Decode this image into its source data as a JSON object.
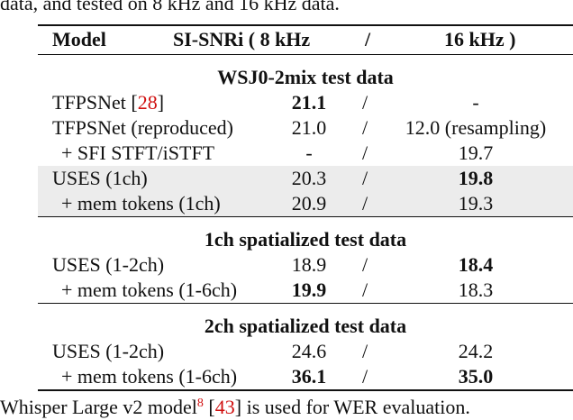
{
  "intro_text": "data, and tested on 8 kHz and 16 kHz data.",
  "table": {
    "columns": [
      "Model",
      "SI-SNRi ( 8 kHz",
      "/",
      "16 kHz )"
    ],
    "sections": [
      {
        "title": "WSJ0-2mix test data",
        "rows": [
          {
            "model": "TFPSNet",
            "ref": {
              "open": "[",
              "label": "28",
              "close": "]"
            },
            "snr8": "21.1",
            "sep": "/",
            "snr16": "-",
            "bold": "snr8"
          },
          {
            "model": "TFPSNet (reproduced)",
            "snr8": "21.0",
            "sep": "/",
            "snr16": "12.0 (resampling)"
          },
          {
            "model": "+ SFI STFT/iSTFT",
            "indent": true,
            "snr8": "-",
            "sep": "/",
            "snr16": "19.7"
          },
          {
            "model": "USES (1ch)",
            "snr8": "20.3",
            "sep": "/",
            "snr16": "19.8",
            "bold": "snr16",
            "shaded": true
          },
          {
            "model": "+ mem tokens (1ch)",
            "indent": true,
            "snr8": "20.9",
            "sep": "/",
            "snr16": "19.3",
            "shaded": true
          }
        ]
      },
      {
        "title": "1ch spatialized test data",
        "rows": [
          {
            "model": "USES (1-2ch)",
            "snr8": "18.9",
            "sep": "/",
            "snr16": "18.4",
            "bold": "snr16"
          },
          {
            "model": "+ mem tokens (1-6ch)",
            "indent": true,
            "snr8": "19.9",
            "sep": "/",
            "snr16": "18.3",
            "bold": "snr8"
          }
        ]
      },
      {
        "title": "2ch spatialized test data",
        "rows": [
          {
            "model": "USES (1-2ch)",
            "snr8": "24.6",
            "sep": "/",
            "snr16": "24.2"
          },
          {
            "model": "+ mem tokens (1-6ch)",
            "indent": true,
            "snr8": "36.1",
            "sep": "/",
            "snr16": "35.0",
            "bold": "both"
          }
        ]
      }
    ]
  },
  "footer": {
    "text": "Whisper Large v2 model",
    "footnote": "8",
    "open": " [",
    "ref": "43",
    "close": "] is used for WER evaluation."
  }
}
